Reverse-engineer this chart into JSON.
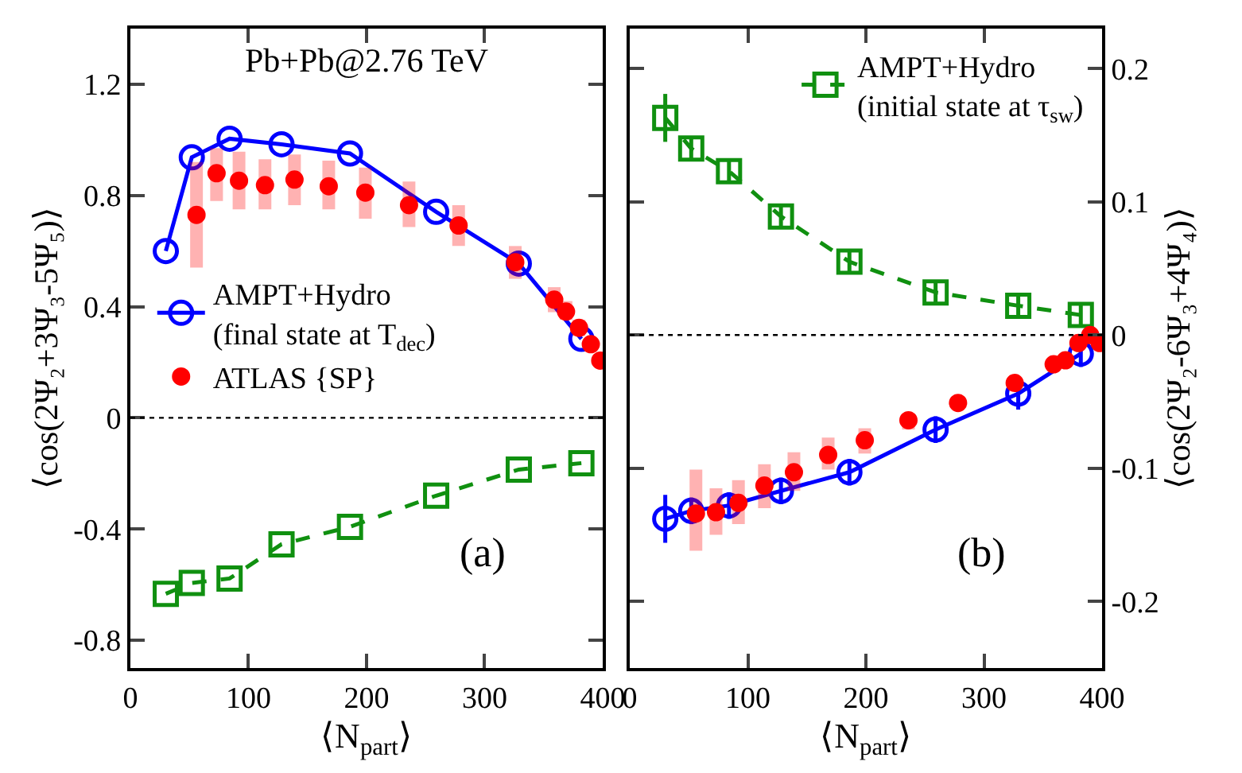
{
  "chart_data": [
    {
      "type": "line",
      "xlabel": "⟨N$_{part}$⟩",
      "ylabel": "⟨cos(2Ψ₂+3Ψ₃-5Ψ₅)⟩",
      "annotations": [
        "Pb+Pb@2.76 TeV",
        "(a)"
      ],
      "xlim": [
        0,
        400
      ],
      "xticks": [
        0,
        100,
        200,
        300,
        400
      ],
      "ylim": [
        -0.9,
        1.4
      ],
      "yticks": [
        {
          "value": -0.8,
          "label": "-0.8"
        },
        {
          "value": -0.4,
          "label": "-0.4"
        },
        0,
        {
          "value": 0.4,
          "label": "0.4"
        },
        {
          "value": 0.8,
          "label": "0.8"
        },
        {
          "value": 1.2,
          "label": "1.2"
        }
      ],
      "grid": false,
      "legend": "left",
      "ref_lines": [
        {
          "axis": "y",
          "value": 0,
          "label": null,
          "color": "#000000",
          "line_style": "dotted"
        }
      ],
      "series": [
        {
          "type": "scatter",
          "name": "ATLAS {SP}",
          "color": "#ff0000",
          "marker": "circle",
          "x": [
            56,
            73,
            92,
            114,
            139,
            168,
            199,
            236,
            278,
            326,
            359,
            369,
            380,
            390,
            398
          ],
          "values": [
            0.73,
            0.88,
            0.853,
            0.837,
            0.857,
            0.833,
            0.81,
            0.765,
            0.692,
            0.56,
            0.425,
            0.382,
            0.324,
            0.265,
            0.206
          ],
          "errors": [
            [
              0.54,
              0.92
            ],
            [
              0.78,
              0.97
            ],
            [
              0.75,
              0.957
            ],
            [
              0.75,
              0.93
            ],
            [
              0.765,
              0.947
            ],
            [
              0.75,
              0.925
            ],
            [
              0.716,
              0.9
            ],
            [
              0.686,
              0.85
            ],
            [
              0.618,
              0.765
            ],
            [
              0.5,
              0.618
            ],
            [
              0.38,
              0.47
            ],
            [
              0.353,
              0.42
            ],
            [
              0.294,
              0.353
            ],
            null,
            null
          ]
        },
        {
          "name": "AMPT+Hydro\n(final state at T$_{dec}$)",
          "color": "#0000ff",
          "marker": "circle",
          "line_style": "solid",
          "x": [
            30,
            52,
            84,
            128,
            186,
            259,
            329,
            382
          ],
          "values": [
            0.6,
            0.937,
            1.004,
            0.984,
            0.951,
            0.741,
            0.555,
            0.284
          ]
        },
        {
          "color": "#109010",
          "marker": "square",
          "line_style": "dashed",
          "x": [
            30,
            52,
            84,
            128,
            186,
            259,
            329,
            382
          ],
          "values": [
            -0.633,
            -0.594,
            -0.578,
            -0.455,
            -0.392,
            -0.28,
            -0.186,
            -0.163
          ]
        }
      ]
    },
    {
      "type": "line",
      "xlabel": "⟨N$_{part}$⟩",
      "y2label": "⟨cos(2Ψ₂-6Ψ₃+4Ψ₄)⟩",
      "annotations": [
        "(b)"
      ],
      "xlim": [
        0,
        400
      ],
      "xticks": [
        0,
        100,
        200,
        300,
        400
      ],
      "y2lim": [
        -0.25,
        0.23
      ],
      "y2ticks": [
        {
          "value": -0.2,
          "label": "-0.2"
        },
        {
          "value": -0.1,
          "label": "-0.1"
        },
        0,
        0.1,
        0.2
      ],
      "grid": false,
      "legend": "top right",
      "ref_lines": [
        {
          "axis": "y2",
          "value": 0,
          "label": null,
          "color": "#000000",
          "line_style": "dotted"
        }
      ],
      "series": [
        {
          "type": "scatter",
          "axis": "y2",
          "color": "#ff0000",
          "marker": "circle",
          "x": [
            56,
            73,
            92,
            114,
            139,
            168,
            199,
            236,
            278,
            326,
            359,
            369,
            380,
            390,
            398
          ],
          "values": [
            -0.134,
            -0.133,
            -0.126,
            -0.113,
            -0.103,
            -0.09,
            -0.079,
            -0.064,
            -0.051,
            -0.036,
            -0.022,
            -0.019,
            -0.006,
            0,
            -0.006
          ],
          "errors": [
            [
              -0.162,
              -0.101
            ],
            [
              -0.15,
              -0.115
            ],
            [
              -0.142,
              -0.109
            ],
            [
              -0.13,
              -0.097
            ],
            [
              -0.117,
              -0.088
            ],
            [
              -0.101,
              -0.077
            ],
            [
              -0.089,
              -0.07
            ],
            [
              -0.071,
              -0.059
            ],
            null,
            null,
            null,
            null,
            null,
            null,
            null
          ]
        },
        {
          "axis": "y2",
          "color": "#0000ff",
          "marker": "circle",
          "line_style": "solid",
          "x": [
            30,
            52,
            84,
            128,
            186,
            259,
            329,
            382
          ],
          "values": [
            -0.138,
            -0.132,
            -0.128,
            -0.117,
            -0.103,
            -0.071,
            -0.044,
            -0.014
          ],
          "errors": [
            0.018,
            0.01,
            0.01,
            0.01,
            0.01,
            0.01,
            0.012,
            0.01
          ]
        },
        {
          "axis": "y2",
          "name": "AMPT+Hydro\n(initial state at τ$_{sw}$)",
          "color": "#109010",
          "marker": "square",
          "line_style": "dashed",
          "x": [
            30,
            52,
            84,
            128,
            186,
            259,
            329,
            382
          ],
          "values": [
            0.163,
            0.14,
            0.123,
            0.089,
            0.055,
            0.032,
            0.022,
            0.015
          ],
          "errors": [
            0.018,
            0.008,
            0.008,
            0.008,
            0.008,
            0.008,
            0.008,
            0.008
          ]
        }
      ]
    }
  ]
}
